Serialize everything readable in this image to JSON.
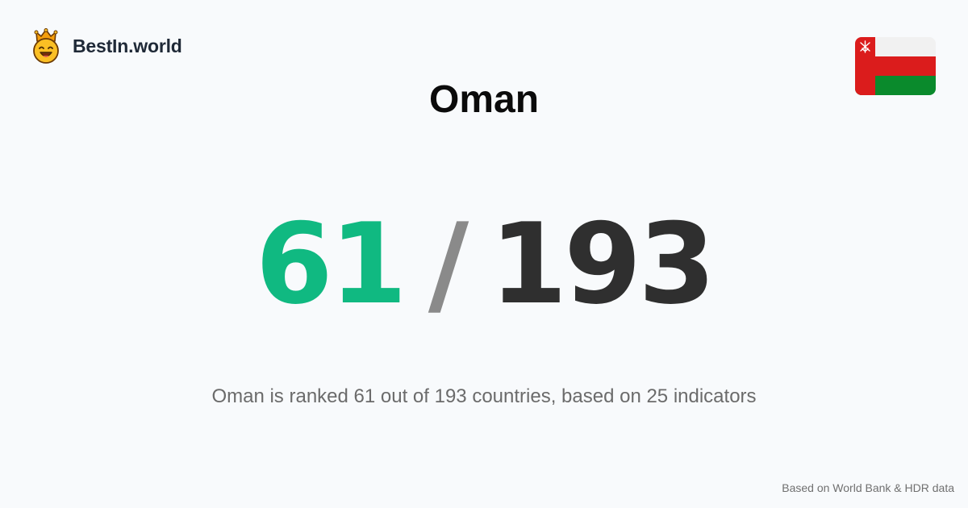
{
  "brand": {
    "name": "BestIn.world",
    "logo_icon": "crowned-smiley-icon"
  },
  "country": {
    "name": "Oman",
    "flag_icon": "oman-flag-icon",
    "flag_colors": {
      "white": "#f1f1f1",
      "red": "#db1c1c",
      "green": "#0a8a2c"
    }
  },
  "rank": {
    "value": "61",
    "separator": "/",
    "total": "193",
    "colors": {
      "value": "#10b981",
      "separator": "#8a8a8a",
      "total": "#2f2f2f"
    }
  },
  "summary": "Oman is ranked 61 out of 193 countries, based on 25 indicators",
  "footer": {
    "source_note": "Based on World Bank & HDR data"
  }
}
